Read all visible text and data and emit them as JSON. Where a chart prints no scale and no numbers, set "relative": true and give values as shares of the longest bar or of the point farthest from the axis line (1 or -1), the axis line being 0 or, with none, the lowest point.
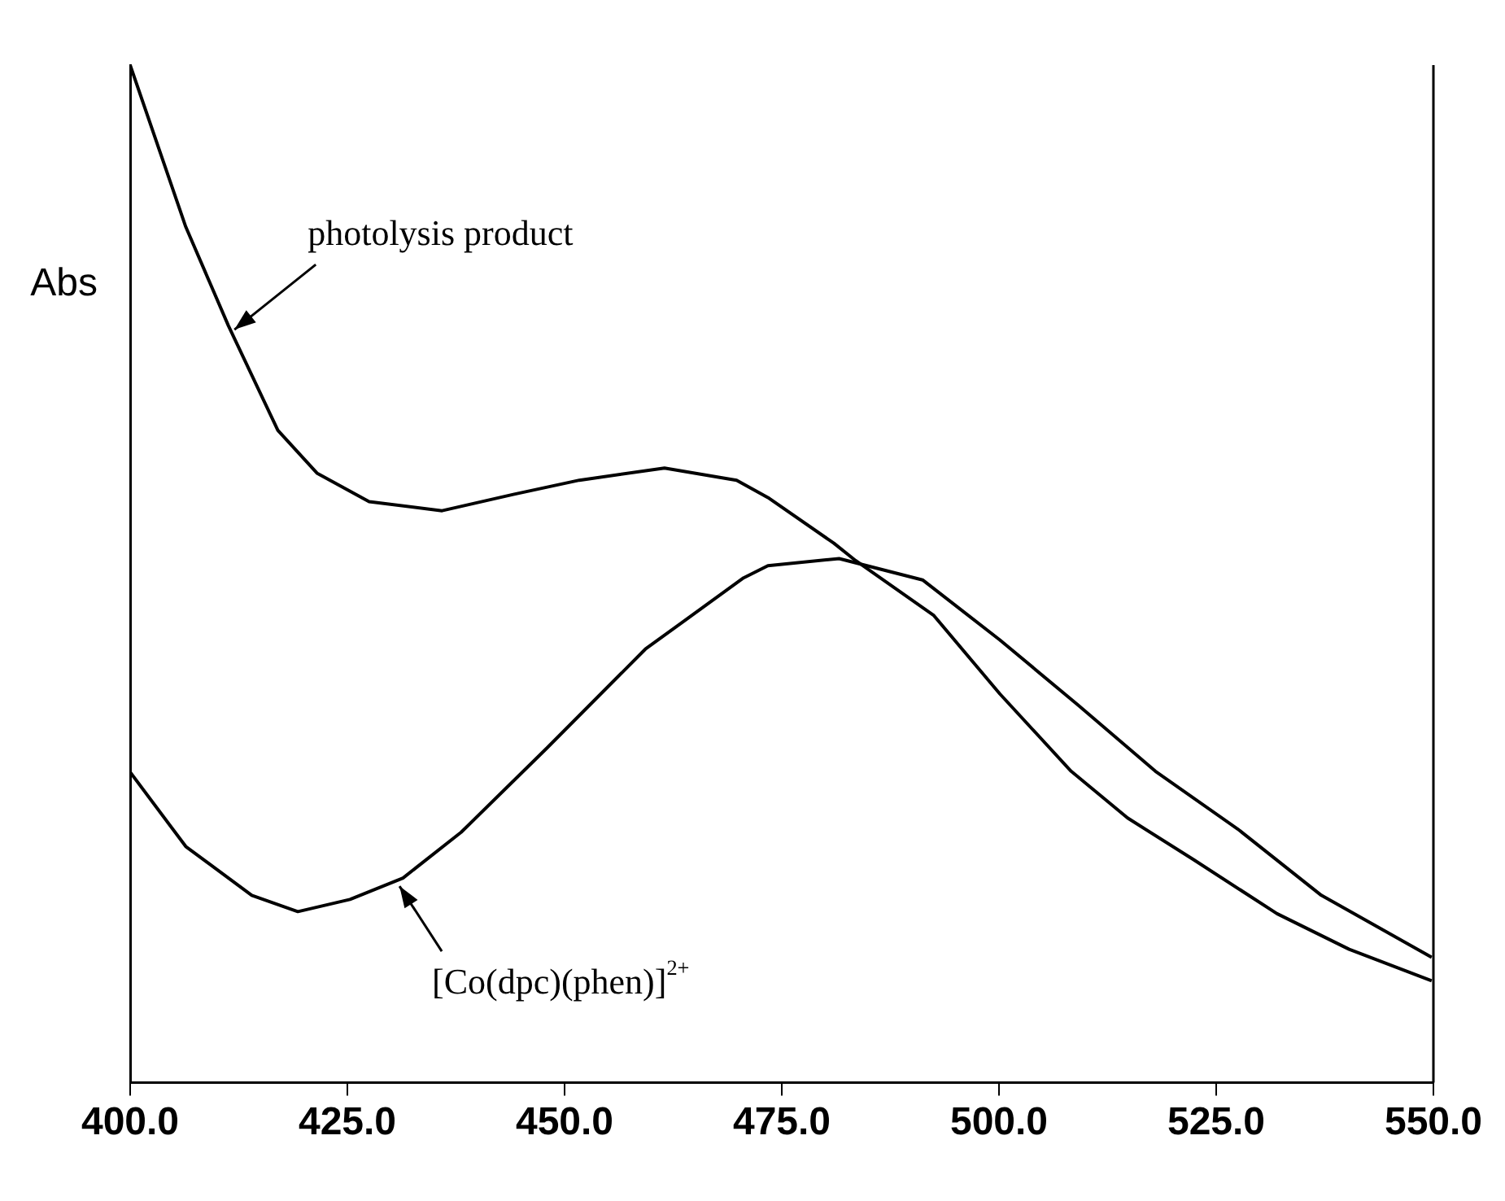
{
  "chart_data": {
    "type": "line",
    "ylabel": "Abs",
    "relative": true,
    "legend": false,
    "grid": false,
    "marker": "none",
    "line_style": "solid",
    "xlim": [
      400,
      550
    ],
    "xticks": [
      {
        "value": 400,
        "label": "400.0"
      },
      {
        "value": 425,
        "label": "425.0"
      },
      {
        "value": 450,
        "label": "450.0"
      },
      {
        "value": 475,
        "label": "475.0"
      },
      {
        "value": 500,
        "label": "500.0"
      },
      {
        "value": 525,
        "label": "525.0"
      },
      {
        "value": 550,
        "label": "550.0"
      }
    ],
    "series": [
      {
        "color": "#000000",
        "x": [
          400,
          406.4,
          411.3,
          417.0,
          421.5,
          427.5,
          435.9,
          444.1,
          451.7,
          461.5,
          469.8,
          473.4,
          481.0,
          483.5,
          492.5,
          500.1,
          508.3,
          514.8,
          522.4,
          532.0,
          540.3,
          549.8
        ],
        "values": [
          1.0,
          0.841,
          0.744,
          0.641,
          0.599,
          0.571,
          0.562,
          0.578,
          0.592,
          0.604,
          0.592,
          0.575,
          0.53,
          0.513,
          0.459,
          0.382,
          0.306,
          0.26,
          0.219,
          0.166,
          0.131,
          0.1
        ]
      },
      {
        "color": "#000000",
        "x": [
          400,
          406.4,
          414.0,
          419.3,
          425.3,
          431.4,
          438.1,
          448.0,
          459.3,
          470.6,
          473.4,
          481.6,
          491.2,
          500.1,
          509.1,
          518.0,
          527.5,
          537.1,
          549.8
        ],
        "values": [
          0.305,
          0.232,
          0.184,
          0.168,
          0.18,
          0.201,
          0.246,
          0.329,
          0.426,
          0.496,
          0.508,
          0.515,
          0.494,
          0.435,
          0.371,
          0.306,
          0.249,
          0.184,
          0.123
        ]
      }
    ],
    "annotations": [
      {
        "text": "photolysis product",
        "x": 412,
        "y": 0.74
      },
      {
        "text": "[Co(dpc)(phen)]$^{2+}$",
        "x": 431,
        "y": 0.193
      }
    ]
  }
}
